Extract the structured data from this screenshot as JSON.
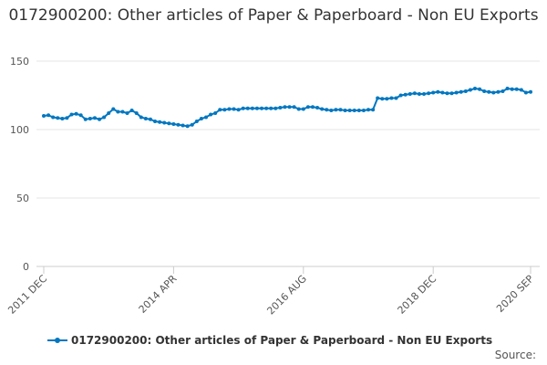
{
  "chart_data": {
    "type": "line",
    "title": "0172900200: Other articles of Paper & Paperboard - Non EU Exports",
    "xlabel": "",
    "ylabel": "",
    "ylim": [
      0,
      150
    ],
    "yticks": [
      0,
      50,
      100,
      150
    ],
    "x_start": "2011 DEC",
    "x_end": "2020 SEP",
    "x_tick_labels": [
      {
        "label": "2011 DEC",
        "index": 0
      },
      {
        "label": "2014 APR",
        "index": 28
      },
      {
        "label": "2016 AUG",
        "index": 56
      },
      {
        "label": "2018 DEC",
        "index": 84
      },
      {
        "label": "2020 SEP",
        "index": 105
      }
    ],
    "grid": true,
    "legend_position": "bottom",
    "color": "#0077c0",
    "series": [
      {
        "name": "0172900200: Other articles of Paper & Paperboard - Non EU Exports",
        "values": [
          110,
          110.5,
          109,
          108.5,
          108,
          108.5,
          111,
          111.5,
          110.5,
          107.5,
          108,
          108.5,
          107.5,
          109,
          112,
          115,
          113,
          113,
          112,
          114,
          112,
          109,
          108,
          107.5,
          106,
          105.5,
          105,
          104.5,
          104,
          103.5,
          103,
          102.5,
          103.5,
          106,
          108,
          109,
          111,
          112,
          114.5,
          114.5,
          115,
          115,
          114.5,
          115.5,
          115.5,
          115.5,
          115.5,
          115.5,
          115.5,
          115.5,
          115.5,
          116,
          116.5,
          116.5,
          116.5,
          115,
          115,
          116.5,
          116.5,
          116,
          115,
          114.5,
          114,
          114.5,
          114.5,
          114,
          114,
          114,
          114,
          114,
          114.5,
          114.5,
          123,
          122.5,
          122.5,
          123,
          123,
          125,
          125.5,
          126,
          126.5,
          126,
          126,
          126.5,
          127,
          127.5,
          127,
          126.5,
          126.5,
          127,
          127.5,
          128,
          129,
          130,
          129.5,
          128,
          127.5,
          127,
          127.5,
          128,
          130,
          129.5,
          129.5,
          129,
          127,
          127.5
        ]
      }
    ]
  },
  "source_label": "Source:"
}
